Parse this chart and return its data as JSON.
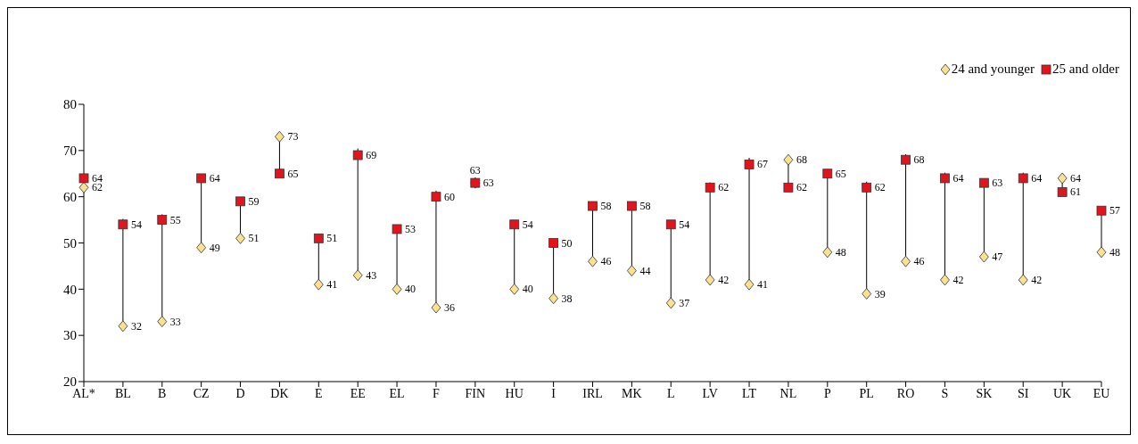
{
  "chart_data": {
    "type": "scatter",
    "categories": [
      "AL*",
      "BL",
      "B",
      "CZ",
      "D",
      "DK",
      "E",
      "EE",
      "EL",
      "F",
      "FIN",
      "HU",
      "I",
      "IRL",
      "MK",
      "L",
      "LV",
      "LT",
      "NL",
      "P",
      "PL",
      "RO",
      "S",
      "SK",
      "SI",
      "UK",
      "EU"
    ],
    "series": [
      {
        "name": "24 and younger",
        "color": "#f8e292",
        "marker": "diamond",
        "values": [
          62,
          32,
          33,
          49,
          51,
          73,
          41,
          43,
          40,
          36,
          63,
          40,
          38,
          46,
          44,
          37,
          42,
          41,
          68,
          48,
          39,
          46,
          42,
          47,
          42,
          64,
          48
        ]
      },
      {
        "name": "25 and older",
        "color": "#e2141e",
        "marker": "square",
        "values": [
          64,
          54,
          55,
          64,
          59,
          65,
          51,
          69,
          53,
          60,
          63,
          54,
          50,
          58,
          58,
          54,
          62,
          67,
          62,
          65,
          62,
          68,
          64,
          63,
          64,
          61,
          57
        ]
      }
    ],
    "ylim": [
      20,
      80
    ],
    "yticks": [
      20,
      30,
      40,
      50,
      60,
      70,
      80
    ],
    "grid": false,
    "legend": "top right",
    "data_labels": true
  }
}
